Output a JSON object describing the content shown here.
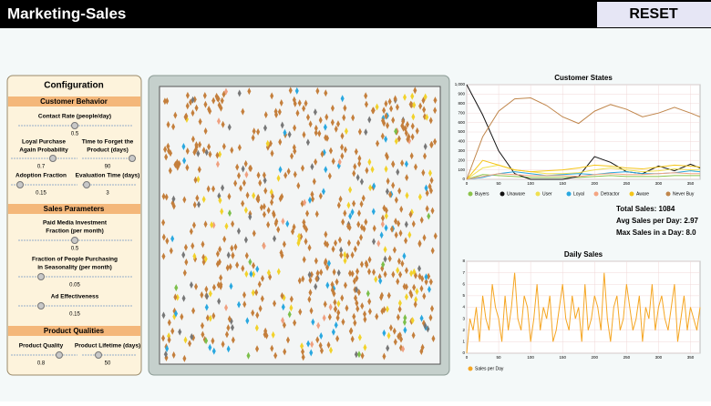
{
  "header": {
    "title": "Marketing-Sales",
    "button": "RESET"
  },
  "config": {
    "title": "Configuration",
    "sections": [
      {
        "title": "Customer Behavior",
        "params": [
          {
            "label": [
              "Contact Rate (people/day)"
            ],
            "value": "0.5"
          },
          {
            "label": [
              "Loyal Purchase",
              "Again Probability"
            ],
            "value": "0.7"
          },
          {
            "label": [
              "Time to Forget the",
              "Product (days)"
            ],
            "value": "90"
          },
          {
            "label": [
              "Adoption Fraction"
            ],
            "value": "0.15"
          },
          {
            "label": [
              "Evaluation Time (days)"
            ],
            "value": "3"
          }
        ]
      },
      {
        "title": "Sales Parameters",
        "params": [
          {
            "label": [
              "Paid Media Investment",
              "Fraction (per month)"
            ],
            "value": "0.5"
          },
          {
            "label": [
              "Fraction of People Purchasing",
              "in Seasonality (per month)"
            ],
            "value": "0.05"
          },
          {
            "label": [
              "Ad Effectiveness"
            ],
            "value": "0.15"
          }
        ]
      },
      {
        "title": "Product Qualities",
        "params": [
          {
            "label": [
              "Product Quality"
            ],
            "value": "0.8"
          },
          {
            "label": [
              "Product Lifetime (days)"
            ],
            "value": "50"
          }
        ]
      }
    ]
  },
  "customer_states": {
    "type": "line",
    "title": "Customer States",
    "x": [
      0,
      25,
      50,
      75,
      100,
      125,
      150,
      175,
      200,
      225,
      250,
      275,
      300,
      325,
      350,
      365
    ],
    "xlim": [
      0,
      365
    ],
    "xticks": [
      0,
      50,
      100,
      150,
      200,
      250,
      300,
      350
    ],
    "ylim": [
      0,
      1000
    ],
    "yticks": [
      0,
      100,
      200,
      300,
      400,
      500,
      600,
      700,
      800,
      900,
      {
        "value": 1000,
        "label": "1,000"
      }
    ],
    "grid": true,
    "series": [
      {
        "name": "Buyers",
        "color": "#8bc34a",
        "values": [
          0,
          50,
          40,
          30,
          20,
          20,
          20,
          20,
          30,
          40,
          30,
          30,
          30,
          40,
          40,
          40
        ]
      },
      {
        "name": "Unaware",
        "color": "#111111",
        "values": [
          1000,
          680,
          300,
          60,
          0,
          0,
          0,
          30,
          240,
          180,
          80,
          60,
          140,
          90,
          160,
          120
        ]
      },
      {
        "name": "User",
        "color": "#f0e050",
        "values": [
          0,
          120,
          150,
          100,
          80,
          60,
          60,
          70,
          100,
          120,
          100,
          80,
          90,
          110,
          100,
          100
        ]
      },
      {
        "name": "Loyal",
        "color": "#29a8e0",
        "values": [
          0,
          20,
          60,
          80,
          60,
          40,
          50,
          60,
          50,
          70,
          80,
          60,
          60,
          70,
          90,
          80
        ]
      },
      {
        "name": "Detractor",
        "color": "#f4a582",
        "values": [
          0,
          30,
          60,
          50,
          40,
          40,
          40,
          30,
          50,
          60,
          50,
          50,
          60,
          70,
          60,
          60
        ]
      },
      {
        "name": "Aware",
        "color": "#f5c518",
        "values": [
          0,
          200,
          150,
          100,
          80,
          90,
          100,
          120,
          150,
          140,
          120,
          110,
          130,
          150,
          140,
          130
        ]
      },
      {
        "name": "Never Buy",
        "color": "#c0864b",
        "values": [
          0,
          450,
          720,
          850,
          860,
          780,
          660,
          590,
          720,
          790,
          740,
          660,
          700,
          760,
          700,
          660
        ]
      }
    ]
  },
  "stats": [
    "Total Sales: 1084",
    "Avg Sales per Day: 2.97",
    "Max Sales in a Day: 8.0"
  ],
  "daily_sales": {
    "type": "line",
    "title": "Daily Sales",
    "x": [
      0,
      5,
      10,
      15,
      20,
      25,
      30,
      35,
      40,
      45,
      50,
      55,
      60,
      65,
      70,
      75,
      80,
      85,
      90,
      95,
      100,
      105,
      110,
      115,
      120,
      125,
      130,
      135,
      140,
      145,
      150,
      155,
      160,
      165,
      170,
      175,
      180,
      185,
      190,
      195,
      200,
      205,
      210,
      215,
      220,
      225,
      230,
      235,
      240,
      245,
      250,
      255,
      260,
      265,
      270,
      275,
      280,
      285,
      290,
      295,
      300,
      305,
      310,
      315,
      320,
      325,
      330,
      335,
      340,
      345,
      350,
      355,
      360,
      365
    ],
    "xlim": [
      0,
      365
    ],
    "xticks": [
      0,
      50,
      100,
      150,
      200,
      250,
      300,
      350
    ],
    "ylim": [
      0,
      8
    ],
    "yticks": [
      0,
      1,
      2,
      3,
      4,
      5,
      6,
      7,
      8
    ],
    "grid": true,
    "series": [
      {
        "name": "Sales per Day",
        "color": "#f5a623",
        "values": [
          0,
          3,
          2,
          4,
          1,
          5,
          3,
          2,
          6,
          4,
          3,
          1,
          5,
          2,
          4,
          7,
          3,
          2,
          5,
          4,
          1,
          3,
          6,
          2,
          4,
          3,
          5,
          1,
          2,
          4,
          6,
          3,
          2,
          5,
          3,
          4,
          1,
          6,
          2,
          3,
          5,
          4,
          2,
          7,
          3,
          1,
          4,
          5,
          2,
          3,
          6,
          4,
          2,
          3,
          5,
          1,
          4,
          3,
          6,
          2,
          4,
          5,
          3,
          2,
          4,
          6,
          1,
          3,
          5,
          2,
          4,
          3,
          2,
          4
        ]
      }
    ]
  }
}
